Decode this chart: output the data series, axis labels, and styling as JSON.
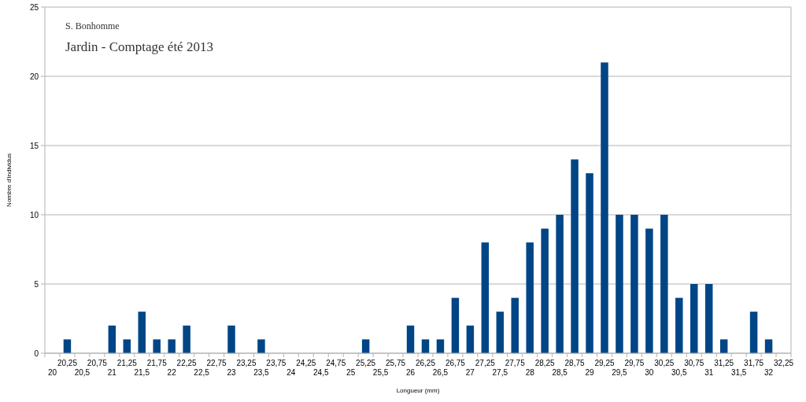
{
  "chart_data": {
    "type": "bar",
    "title": "Jardin - Comptage été 2013",
    "annotations": [
      "S. Bonhomme"
    ],
    "xlabel": "Longueur (mm)",
    "ylabel": "Nombre d'individus",
    "categories": [
      "20",
      "20,25",
      "20,5",
      "20,75",
      "21",
      "21,25",
      "21,5",
      "21,75",
      "22",
      "22,25",
      "22,5",
      "22,75",
      "23",
      "23,25",
      "23,5",
      "23,75",
      "24",
      "24,25",
      "24,5",
      "24,75",
      "25",
      "25,25",
      "25,5",
      "25,75",
      "26",
      "26,25",
      "26,5",
      "26,75",
      "27",
      "27,25",
      "27,5",
      "27,75",
      "28",
      "28,25",
      "28,5",
      "28,75",
      "29",
      "29,25",
      "29,5",
      "29,75",
      "30",
      "30,25",
      "30,5",
      "30,75",
      "31",
      "31,25",
      "31,5",
      "31,75",
      "32",
      "32,25"
    ],
    "values": [
      0,
      1,
      0,
      0,
      2,
      1,
      3,
      1,
      1,
      2,
      0,
      0,
      2,
      0,
      1,
      0,
      0,
      0,
      0,
      0,
      0,
      1,
      0,
      0,
      2,
      1,
      1,
      4,
      2,
      8,
      3,
      4,
      8,
      9,
      10,
      14,
      13,
      21,
      10,
      10,
      9,
      10,
      4,
      5,
      5,
      1,
      0,
      3,
      1,
      0
    ],
    "color": "#004586",
    "ylim": [
      0,
      25
    ],
    "yticks": [
      0,
      5,
      10,
      15,
      20,
      25
    ],
    "grid": "y"
  }
}
